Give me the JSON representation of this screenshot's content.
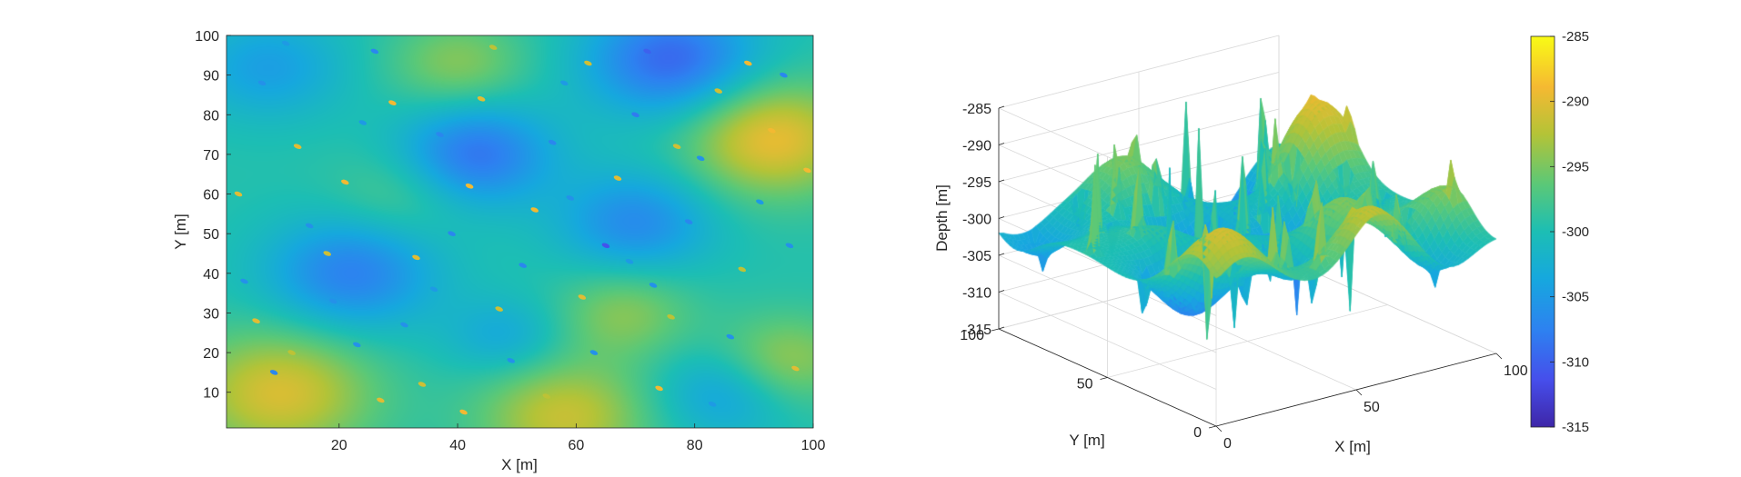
{
  "chart_data": [
    {
      "type": "heatmap",
      "xlabel": "X [m]",
      "ylabel": "Y [m]",
      "xlim": [
        1,
        100
      ],
      "ylim": [
        1,
        100
      ],
      "xticks": [
        20,
        40,
        60,
        80,
        100
      ],
      "yticks": [
        10,
        20,
        30,
        40,
        50,
        60,
        70,
        80,
        90,
        100
      ],
      "value_range": [
        -315,
        -285
      ],
      "colormap": "parula",
      "smooth_field": {
        "base": -299.5,
        "bumps": [
          {
            "x": 10,
            "y": 10,
            "amplitude": 9,
            "sigma": 11
          },
          {
            "x": 93,
            "y": 74,
            "amplitude": 10,
            "sigma": 10
          },
          {
            "x": 58,
            "y": 4,
            "amplitude": 8,
            "sigma": 10
          },
          {
            "x": 76,
            "y": 94,
            "amplitude": -10,
            "sigma": 10
          },
          {
            "x": 43,
            "y": 70,
            "amplitude": -9,
            "sigma": 9
          },
          {
            "x": 22,
            "y": 40,
            "amplitude": -8,
            "sigma": 10
          },
          {
            "x": 70,
            "y": 53,
            "amplitude": -7,
            "sigma": 9
          },
          {
            "x": 8,
            "y": 92,
            "amplitude": -5,
            "sigma": 9
          },
          {
            "x": 68,
            "y": 30,
            "amplitude": 5,
            "sigma": 8
          },
          {
            "x": 40,
            "y": 93,
            "amplitude": 5,
            "sigma": 8
          },
          {
            "x": 95,
            "y": 18,
            "amplitude": 6,
            "sigma": 8
          },
          {
            "x": 48,
            "y": 24,
            "amplitude": -4,
            "sigma": 7
          },
          {
            "x": 85,
            "y": 10,
            "amplitude": -5,
            "sigma": 8
          },
          {
            "x": 30,
            "y": 60,
            "amplitude": 3,
            "sigma": 8
          }
        ]
      },
      "spikes": [
        {
          "x": 6,
          "y": 28,
          "value": -290
        },
        {
          "x": 9,
          "y": 15,
          "value": -307
        },
        {
          "x": 12,
          "y": 20,
          "value": -292
        },
        {
          "x": 15,
          "y": 52,
          "value": -306
        },
        {
          "x": 18,
          "y": 45,
          "value": -291
        },
        {
          "x": 21,
          "y": 63,
          "value": -289
        },
        {
          "x": 24,
          "y": 78,
          "value": -305
        },
        {
          "x": 13,
          "y": 72,
          "value": -290
        },
        {
          "x": 7,
          "y": 88,
          "value": -306
        },
        {
          "x": 26,
          "y": 96,
          "value": -307
        },
        {
          "x": 29,
          "y": 83,
          "value": -289
        },
        {
          "x": 31,
          "y": 27,
          "value": -306
        },
        {
          "x": 34,
          "y": 12,
          "value": -291
        },
        {
          "x": 36,
          "y": 36,
          "value": -305
        },
        {
          "x": 39,
          "y": 50,
          "value": -307
        },
        {
          "x": 42,
          "y": 62,
          "value": -289
        },
        {
          "x": 44,
          "y": 84,
          "value": -290
        },
        {
          "x": 46,
          "y": 97,
          "value": -292
        },
        {
          "x": 49,
          "y": 18,
          "value": -306
        },
        {
          "x": 51,
          "y": 42,
          "value": -307
        },
        {
          "x": 53,
          "y": 56,
          "value": -289
        },
        {
          "x": 56,
          "y": 73,
          "value": -307
        },
        {
          "x": 58,
          "y": 88,
          "value": -305
        },
        {
          "x": 61,
          "y": 34,
          "value": -290
        },
        {
          "x": 63,
          "y": 20,
          "value": -306
        },
        {
          "x": 65,
          "y": 47,
          "value": -311
        },
        {
          "x": 67,
          "y": 64,
          "value": -290
        },
        {
          "x": 70,
          "y": 80,
          "value": -308
        },
        {
          "x": 72,
          "y": 96,
          "value": -310
        },
        {
          "x": 74,
          "y": 11,
          "value": -289
        },
        {
          "x": 76,
          "y": 29,
          "value": -292
        },
        {
          "x": 79,
          "y": 53,
          "value": -307
        },
        {
          "x": 81,
          "y": 69,
          "value": -306
        },
        {
          "x": 84,
          "y": 86,
          "value": -291
        },
        {
          "x": 86,
          "y": 24,
          "value": -306
        },
        {
          "x": 88,
          "y": 41,
          "value": -292
        },
        {
          "x": 91,
          "y": 58,
          "value": -305
        },
        {
          "x": 93,
          "y": 76,
          "value": -289
        },
        {
          "x": 95,
          "y": 90,
          "value": -307
        },
        {
          "x": 97,
          "y": 16,
          "value": -290
        },
        {
          "x": 99,
          "y": 66,
          "value": -289
        },
        {
          "x": 4,
          "y": 38,
          "value": -306
        },
        {
          "x": 3,
          "y": 60,
          "value": -290
        },
        {
          "x": 11,
          "y": 98,
          "value": -305
        },
        {
          "x": 19,
          "y": 33,
          "value": -306
        },
        {
          "x": 27,
          "y": 8,
          "value": -290
        },
        {
          "x": 37,
          "y": 75,
          "value": -307
        },
        {
          "x": 47,
          "y": 31,
          "value": -291
        },
        {
          "x": 55,
          "y": 9,
          "value": -292
        },
        {
          "x": 59,
          "y": 59,
          "value": -306
        },
        {
          "x": 69,
          "y": 43,
          "value": -305
        },
        {
          "x": 77,
          "y": 72,
          "value": -291
        },
        {
          "x": 83,
          "y": 7,
          "value": -305
        },
        {
          "x": 89,
          "y": 93,
          "value": -289
        },
        {
          "x": 96,
          "y": 47,
          "value": -306
        },
        {
          "x": 33,
          "y": 44,
          "value": -290
        },
        {
          "x": 23,
          "y": 22,
          "value": -306
        },
        {
          "x": 41,
          "y": 5,
          "value": -289
        },
        {
          "x": 62,
          "y": 93,
          "value": -291
        },
        {
          "x": 73,
          "y": 37,
          "value": -306
        }
      ]
    },
    {
      "type": "surface",
      "xlabel": "X [m]",
      "ylabel": "Y [m]",
      "zlabel": "Depth [m]",
      "xticks": [
        0,
        50,
        100
      ],
      "yticks": [
        0,
        50,
        100
      ],
      "zticks": [
        -315,
        -310,
        -305,
        -300,
        -295,
        -290,
        -285
      ],
      "zlim": [
        -315,
        -285
      ],
      "grid": true,
      "colormap": "parula"
    }
  ],
  "colorbar": {
    "ticks": [
      "-285",
      "-290",
      "-295",
      "-300",
      "-305",
      "-310",
      "-315"
    ],
    "range": [
      -315,
      -285
    ]
  },
  "labels": {
    "map_xlabel": "X [m]",
    "map_ylabel": "Y [m]",
    "surf_xlabel": "X [m]",
    "surf_ylabel": "Y [m]",
    "surf_zlabel": "Depth [m]",
    "map_xticks": [
      "20",
      "40",
      "60",
      "80",
      "100"
    ],
    "map_yticks": [
      "10",
      "20",
      "30",
      "40",
      "50",
      "60",
      "70",
      "80",
      "90",
      "100"
    ],
    "surf_xticks": [
      "0",
      "50",
      "100"
    ],
    "surf_yticks": [
      "0",
      "50",
      "100"
    ],
    "surf_zticks": [
      "-315",
      "-310",
      "-305",
      "-300",
      "-295",
      "-290",
      "-285"
    ]
  }
}
